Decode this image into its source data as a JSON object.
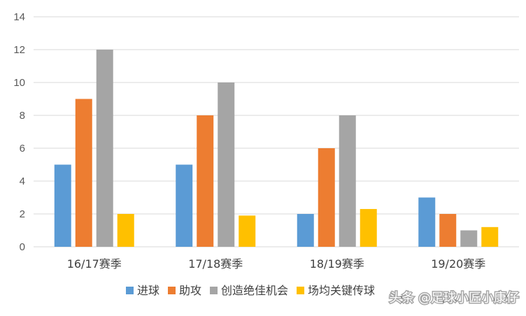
{
  "chart_data": {
    "type": "bar",
    "categories": [
      "16/17赛季",
      "17/18赛季",
      "18/19赛季",
      "19/20赛季"
    ],
    "series": [
      {
        "name": "进球",
        "color": "#5B9BD5",
        "values": [
          5,
          5,
          2,
          3
        ]
      },
      {
        "name": "助攻",
        "color": "#ED7D31",
        "values": [
          9,
          8,
          6,
          2
        ]
      },
      {
        "name": "创造绝佳机会",
        "color": "#A5A5A5",
        "values": [
          12,
          10,
          8,
          1
        ]
      },
      {
        "name": "场均关键传球",
        "color": "#FFC000",
        "values": [
          2,
          1.9,
          2.3,
          1.2
        ]
      }
    ],
    "ylim": [
      0,
      14
    ],
    "yticks": [
      0,
      2,
      4,
      6,
      8,
      10,
      12,
      14
    ],
    "grid": true,
    "legend": "bottom"
  },
  "watermark": {
    "text": "头条 @足球小匠小康仔"
  }
}
